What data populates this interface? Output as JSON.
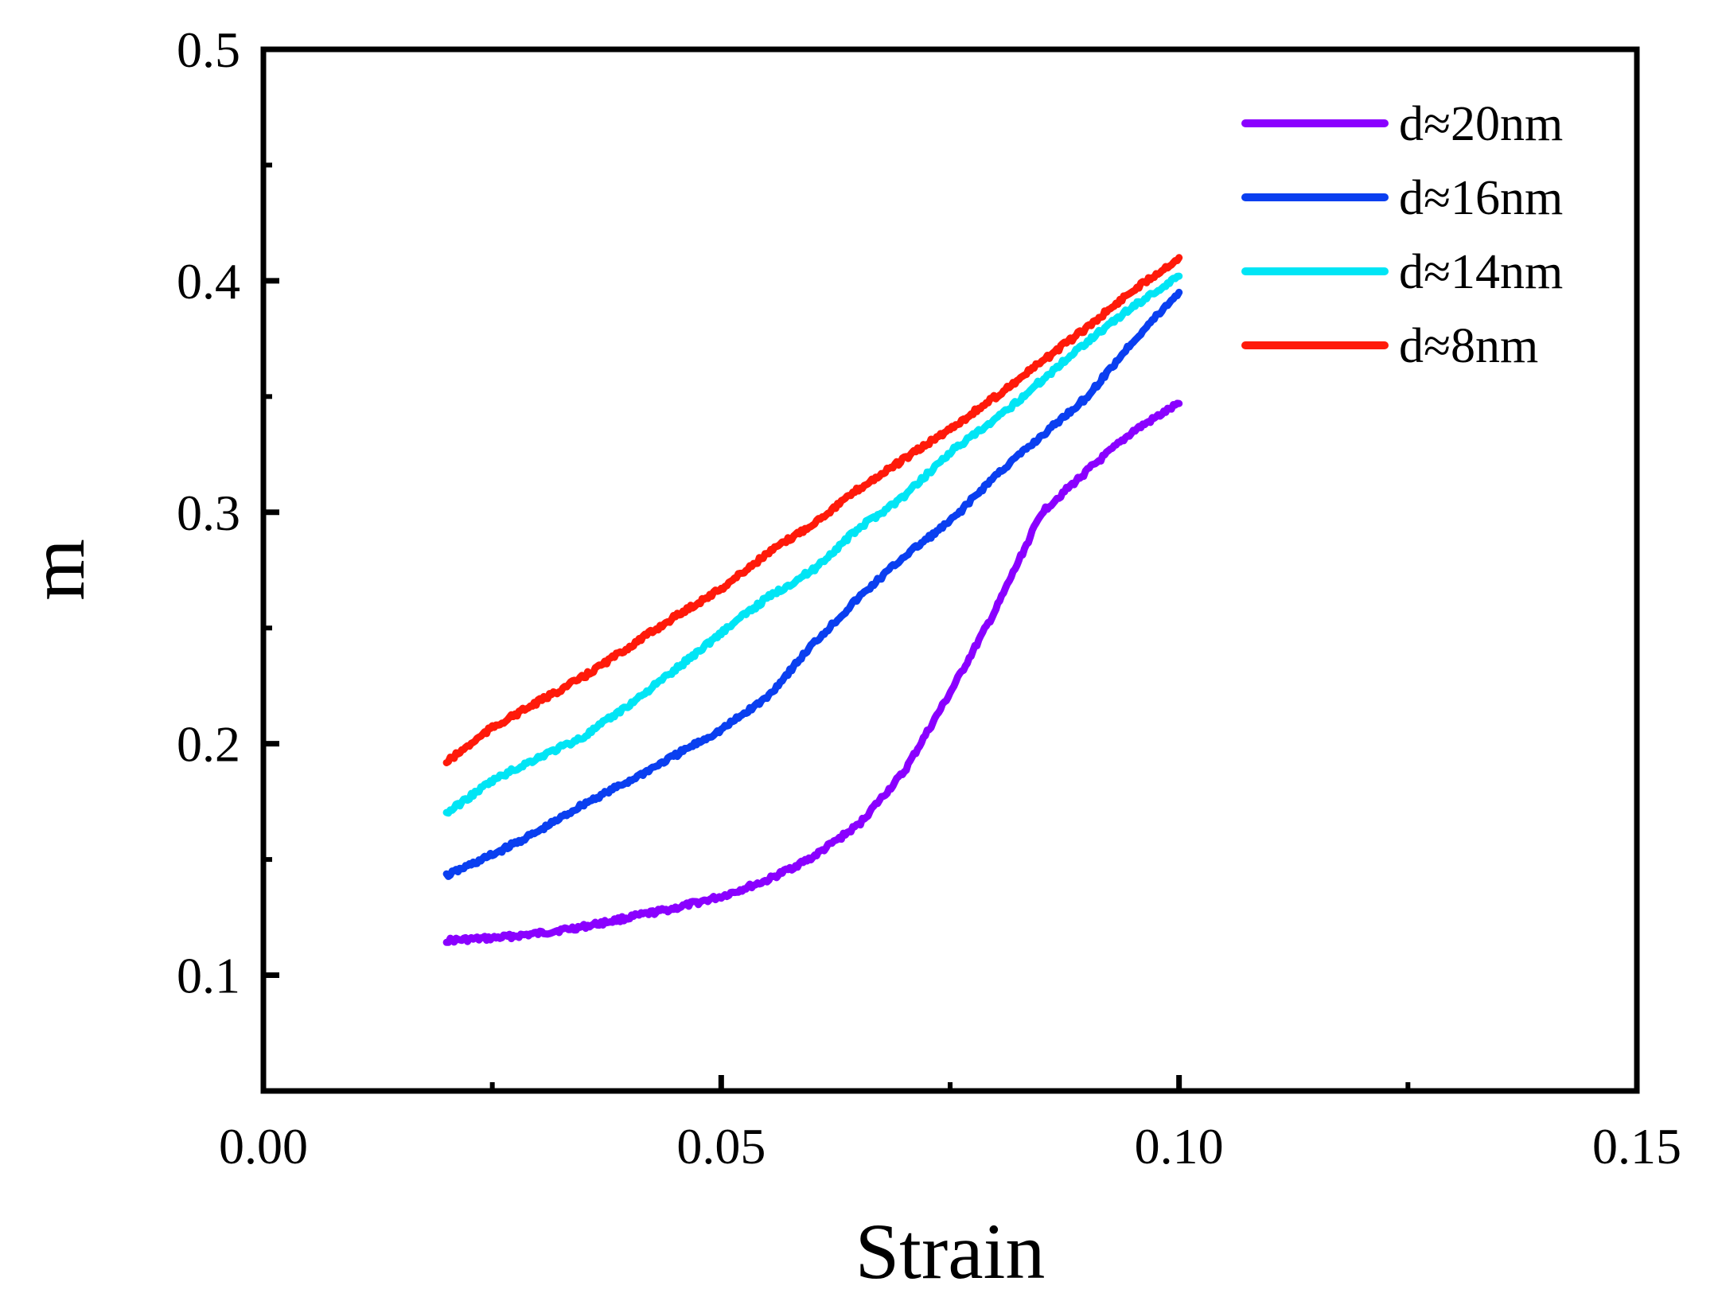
{
  "chart_data": {
    "type": "line",
    "title": "",
    "xlabel": "Strain",
    "ylabel": "m",
    "xlim": [
      0.0,
      0.15
    ],
    "ylim": [
      0.05,
      0.5
    ],
    "xticks": [
      0.0,
      0.05,
      0.1,
      0.15
    ],
    "xtick_labels": [
      "0.00",
      "0.05",
      "0.10",
      "0.15"
    ],
    "xminor": [
      0.025,
      0.075,
      0.125
    ],
    "yticks": [
      0.1,
      0.2,
      0.3,
      0.4,
      0.5
    ],
    "ytick_labels": [
      "0.1",
      "0.2",
      "0.3",
      "0.4",
      "0.5"
    ],
    "yminor": [
      0.15,
      0.25,
      0.35,
      0.45
    ],
    "grid": false,
    "legend_position": "top-right",
    "x": [
      0.02,
      0.025,
      0.03,
      0.035,
      0.04,
      0.045,
      0.05,
      0.055,
      0.06,
      0.065,
      0.07,
      0.075,
      0.08,
      0.085,
      0.09,
      0.095,
      0.1
    ],
    "series": [
      {
        "name": "d≈20nm",
        "color": "#8a00ff",
        "values": [
          0.115,
          0.116,
          0.118,
          0.121,
          0.125,
          0.129,
          0.134,
          0.141,
          0.151,
          0.165,
          0.188,
          0.222,
          0.258,
          0.3,
          0.318,
          0.335,
          0.347
        ]
      },
      {
        "name": "d≈16nm",
        "color": "#0a3ff0",
        "values": [
          0.143,
          0.152,
          0.162,
          0.174,
          0.184,
          0.195,
          0.206,
          0.22,
          0.243,
          0.263,
          0.281,
          0.296,
          0.316,
          0.333,
          0.35,
          0.374,
          0.395
        ]
      },
      {
        "name": "d≈14nm",
        "color": "#00e5f5",
        "values": [
          0.17,
          0.184,
          0.194,
          0.203,
          0.217,
          0.232,
          0.248,
          0.263,
          0.275,
          0.293,
          0.307,
          0.326,
          0.34,
          0.357,
          0.374,
          0.389,
          0.402
        ]
      },
      {
        "name": "d≈8nm",
        "color": "#ff1a0a",
        "values": [
          0.192,
          0.207,
          0.218,
          0.229,
          0.242,
          0.255,
          0.267,
          0.282,
          0.295,
          0.31,
          0.323,
          0.336,
          0.35,
          0.365,
          0.38,
          0.396,
          0.41
        ]
      }
    ]
  }
}
